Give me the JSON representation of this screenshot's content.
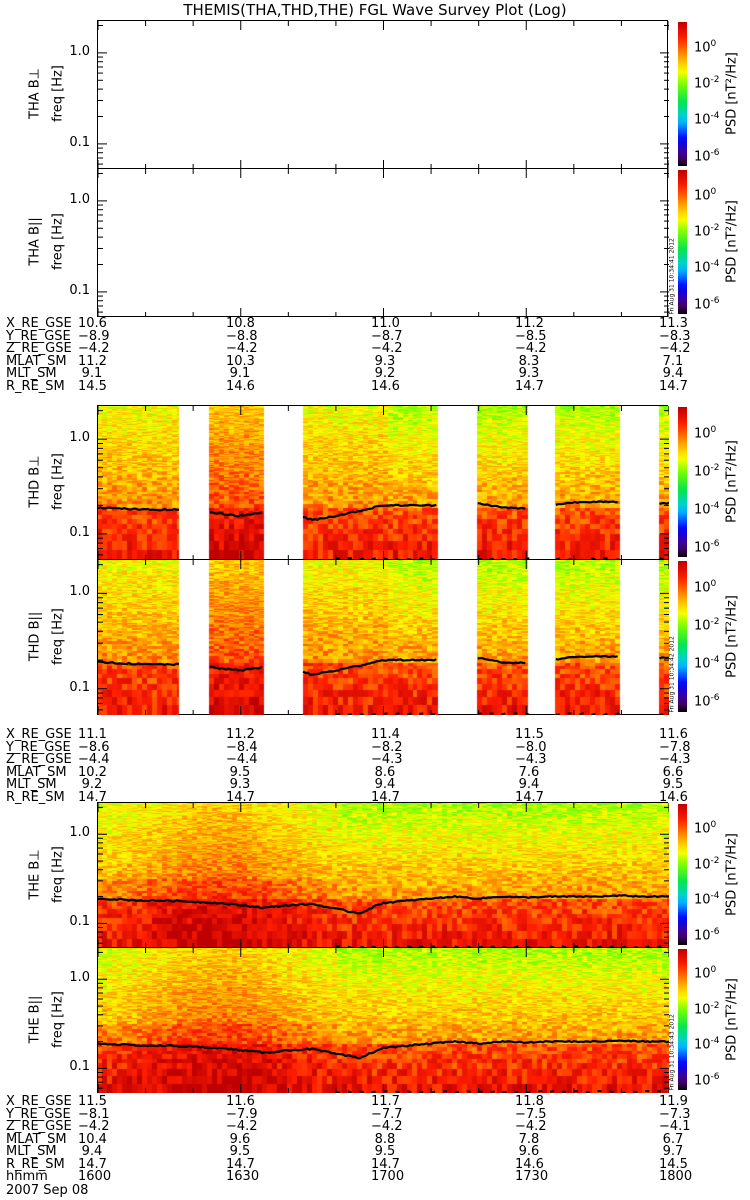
{
  "title": "THEMIS(THA,THD,THE) FGL Wave Survey Plot (Log)",
  "colorbar": {
    "label": "PSD [nT²/Hz]",
    "base": "10",
    "exponents": [
      "0",
      "-2",
      "-4",
      "-6"
    ],
    "range_log10": [
      -6.5,
      1.4
    ]
  },
  "chart_data": [
    {
      "type": "heatmap",
      "id": "tha-perp",
      "probe": "THA",
      "ylabel_top": "THA B⊥",
      "ylabel": "freq [Hz]",
      "yscale": "log",
      "ylim": [
        0.053,
        2.24
      ],
      "yticks": [
        "1.0",
        "0.1"
      ],
      "xlim_min": [
        0,
        120
      ],
      "data_segments_min": [],
      "line": [],
      "stamp": ""
    },
    {
      "type": "heatmap",
      "id": "tha-par",
      "probe": "THA",
      "ylabel_top": "THA B||",
      "ylabel": "freq [Hz]",
      "yscale": "log",
      "ylim": [
        0.053,
        2.24
      ],
      "yticks": [
        "1.0",
        "0.1"
      ],
      "xlim_min": [
        0,
        120
      ],
      "data_segments_min": [],
      "line": [],
      "stamp": "Fri Aug 31 10:34:41 2012"
    },
    {
      "type": "heatmap",
      "id": "thd-perp",
      "probe": "THD",
      "ylabel_top": "THD B⊥",
      "ylabel": "freq [Hz]",
      "yscale": "log",
      "ylim": [
        0.053,
        2.24
      ],
      "yticks": [
        "1.0",
        "0.1"
      ],
      "xlim_min": [
        0,
        120
      ],
      "data_segments_min": [
        [
          0,
          17
        ],
        [
          23.5,
          34.8
        ],
        [
          43.1,
          71.4
        ],
        [
          79.8,
          90.1
        ],
        [
          96.2,
          109.6
        ],
        [
          118,
          120
        ]
      ],
      "line": [
        0.19,
        0.185,
        0.18,
        0.18,
        0.18,
        0.165,
        0.155,
        0.17,
        0.165,
        0.14,
        0.155,
        0.175,
        0.2,
        0.2,
        0.2,
        0.205,
        0.21,
        0.19,
        0.185,
        0.2,
        0.215,
        0.22,
        0.215,
        0.21,
        0.21
      ],
      "stamp": ""
    },
    {
      "type": "heatmap",
      "id": "thd-par",
      "probe": "THD",
      "ylabel_top": "THD B||",
      "ylabel": "freq [Hz]",
      "yscale": "log",
      "ylim": [
        0.053,
        2.24
      ],
      "yticks": [
        "1.0",
        "0.1"
      ],
      "xlim_min": [
        0,
        120
      ],
      "data_segments_min": [
        [
          0,
          17
        ],
        [
          23.5,
          34.8
        ],
        [
          43.1,
          71.4
        ],
        [
          79.8,
          90.1
        ],
        [
          96.2,
          109.6
        ],
        [
          118,
          120
        ]
      ],
      "line": [
        0.19,
        0.185,
        0.18,
        0.18,
        0.18,
        0.165,
        0.155,
        0.17,
        0.165,
        0.14,
        0.155,
        0.175,
        0.2,
        0.2,
        0.2,
        0.205,
        0.21,
        0.19,
        0.185,
        0.2,
        0.215,
        0.22,
        0.215,
        0.21,
        0.21
      ],
      "stamp": "Fri Aug 31 10:34:42 2012"
    },
    {
      "type": "heatmap",
      "id": "the-perp",
      "probe": "THE",
      "ylabel_top": "THE B⊥",
      "ylabel": "freq [Hz]",
      "yscale": "log",
      "ylim": [
        0.053,
        2.24
      ],
      "yticks": [
        "1.0",
        "0.1"
      ],
      "xlim_min": [
        0,
        120
      ],
      "data_segments_min": [
        [
          0,
          120
        ]
      ],
      "line": [
        0.19,
        0.185,
        0.18,
        0.18,
        0.175,
        0.17,
        0.16,
        0.15,
        0.16,
        0.165,
        0.145,
        0.13,
        0.17,
        0.18,
        0.19,
        0.2,
        0.19,
        0.2,
        0.195,
        0.2,
        0.2,
        0.2,
        0.205,
        0.2,
        0.2
      ],
      "stamp": ""
    },
    {
      "type": "heatmap",
      "id": "the-par",
      "probe": "THE",
      "ylabel_top": "THE B||",
      "ylabel": "freq [Hz]",
      "yscale": "log",
      "ylim": [
        0.053,
        2.24
      ],
      "yticks": [
        "1.0",
        "0.1"
      ],
      "xlim_min": [
        0,
        120
      ],
      "data_segments_min": [
        [
          0,
          120
        ]
      ],
      "line": [
        0.19,
        0.185,
        0.18,
        0.18,
        0.175,
        0.17,
        0.16,
        0.15,
        0.16,
        0.165,
        0.145,
        0.13,
        0.17,
        0.18,
        0.19,
        0.2,
        0.19,
        0.2,
        0.195,
        0.2,
        0.2,
        0.2,
        0.205,
        0.2,
        0.2
      ],
      "stamp": "Fri Aug 31 10:34:43 2012"
    }
  ],
  "ephemeris": [
    {
      "probe": "THA",
      "rows": [
        {
          "label": "X_RE_GSE",
          "values": [
            "10.6",
            "10.8",
            "11.0",
            "11.2",
            "11.3"
          ]
        },
        {
          "label": "Y_RE_GSE",
          "values": [
            "−8.9",
            "−8.8",
            "−8.7",
            "−8.5",
            "−8.3"
          ]
        },
        {
          "label": "Z_RE_GSE",
          "values": [
            "−4.2",
            "−4.2",
            "−4.2",
            "−4.2",
            "−4.2"
          ]
        },
        {
          "label": "MLAT_SM",
          "values": [
            "11.2",
            "10.3",
            "9.3",
            "8.3",
            "7.1"
          ]
        },
        {
          "label": "MLT_SM",
          "values": [
            "9.1",
            "9.1",
            "9.2",
            "9.3",
            "9.4"
          ]
        },
        {
          "label": "R_RE_SM",
          "values": [
            "14.5",
            "14.6",
            "14.6",
            "14.7",
            "14.7"
          ]
        }
      ]
    },
    {
      "probe": "THD",
      "rows": [
        {
          "label": "X_RE_GSE",
          "values": [
            "11.1",
            "11.2",
            "11.4",
            "11.5",
            "11.6"
          ]
        },
        {
          "label": "Y_RE_GSE",
          "values": [
            "−8.6",
            "−8.4",
            "−8.2",
            "−8.0",
            "−7.8"
          ]
        },
        {
          "label": "Z_RE_GSE",
          "values": [
            "−4.4",
            "−4.4",
            "−4.3",
            "−4.3",
            "−4.3"
          ]
        },
        {
          "label": "MLAT_SM",
          "values": [
            "10.2",
            "9.5",
            "8.6",
            "7.6",
            "6.6"
          ]
        },
        {
          "label": "MLT_SM",
          "values": [
            "9.2",
            "9.3",
            "9.4",
            "9.4",
            "9.5"
          ]
        },
        {
          "label": "R_RE_SM",
          "values": [
            "14.7",
            "14.7",
            "14.7",
            "14.7",
            "14.6"
          ]
        }
      ]
    },
    {
      "probe": "THE",
      "rows": [
        {
          "label": "X_RE_GSE",
          "values": [
            "11.5",
            "11.6",
            "11.7",
            "11.8",
            "11.9"
          ]
        },
        {
          "label": "Y_RE_GSE",
          "values": [
            "−8.1",
            "−7.9",
            "−7.7",
            "−7.5",
            "−7.3"
          ]
        },
        {
          "label": "Z_RE_GSE",
          "values": [
            "−4.2",
            "−4.2",
            "−4.2",
            "−4.2",
            "−4.1"
          ]
        },
        {
          "label": "MLAT_SM",
          "values": [
            "10.4",
            "9.6",
            "8.8",
            "7.8",
            "6.7"
          ]
        },
        {
          "label": "MLT_SM",
          "values": [
            "9.4",
            "9.5",
            "9.5",
            "9.6",
            "9.7"
          ]
        },
        {
          "label": "R_RE_SM",
          "values": [
            "14.7",
            "14.7",
            "14.7",
            "14.6",
            "14.5"
          ]
        },
        {
          "label": "hhmm",
          "values": [
            "1600",
            "1630",
            "1700",
            "1730",
            "1800"
          ]
        }
      ]
    }
  ],
  "date": "2007 Sep 08"
}
